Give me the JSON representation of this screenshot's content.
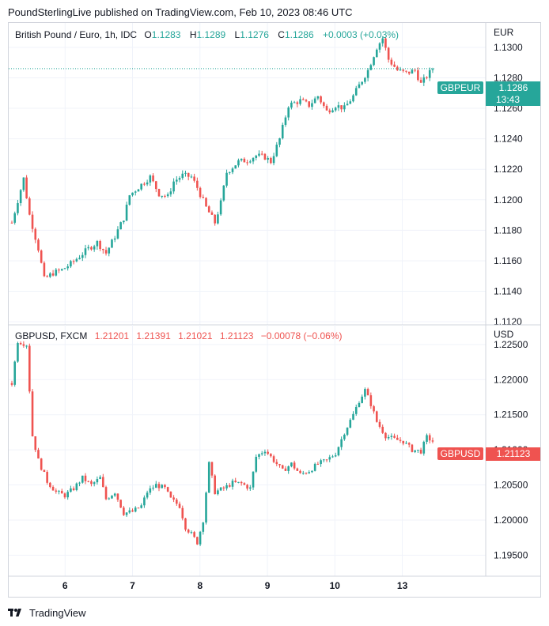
{
  "header": {
    "publisher_line": "PoundSterlingLive published on TradingView.com, Feb 10, 2023 08:46 UTC"
  },
  "footer": {
    "brand_label": "TradingView",
    "logo_icon": "tradingview-logo-icon"
  },
  "colors": {
    "up": "#26a69a",
    "down": "#ef5350",
    "grid": "#f0f3fa",
    "axis_text": "#131722",
    "last_line": "#26a69a"
  },
  "chart_data": [
    {
      "type": "candlestick",
      "symbol": "British Pound / Euro, 1h, IDC",
      "ohlc_labels": {
        "o_key": "O",
        "o_val": "1.1283",
        "h_key": "H",
        "h_val": "1.1289",
        "l_key": "L",
        "l_val": "1.1276",
        "c_key": "C",
        "c_val": "1.1286",
        "change": "+0.0003 (+0.03%)"
      },
      "currency": "EUR",
      "ylim": [
        1.1118,
        1.1316
      ],
      "y_ticks": [
        "1.1120",
        "1.1140",
        "1.1160",
        "1.1180",
        "1.1200",
        "1.1220",
        "1.1240",
        "1.1260",
        "1.1280",
        "1.1300"
      ],
      "last_price_label": {
        "name": "GBPEUR",
        "price": "1.1286",
        "countdown": "13:43",
        "color": "#26a69a"
      },
      "last_price": 1.1286,
      "y_close_path": [
        [
          0,
          1.1185
        ],
        [
          4,
          1.1214
        ],
        [
          6,
          1.119
        ],
        [
          9,
          1.1168
        ],
        [
          11,
          1.1148
        ],
        [
          14,
          1.1152
        ],
        [
          17,
          1.1154
        ],
        [
          20,
          1.1158
        ],
        [
          23,
          1.1163
        ],
        [
          26,
          1.1168
        ],
        [
          29,
          1.1172
        ],
        [
          32,
          1.1165
        ],
        [
          35,
          1.1176
        ],
        [
          38,
          1.1188
        ],
        [
          40,
          1.1203
        ],
        [
          44,
          1.121
        ],
        [
          47,
          1.1215
        ],
        [
          50,
          1.1204
        ],
        [
          53,
          1.1202
        ],
        [
          55,
          1.1212
        ],
        [
          58,
          1.1216
        ],
        [
          61,
          1.1215
        ],
        [
          63,
          1.1208
        ],
        [
          66,
          1.1195
        ],
        [
          69,
          1.1185
        ],
        [
          71,
          1.1198
        ],
        [
          73,
          1.1218
        ],
        [
          77,
          1.1225
        ],
        [
          80,
          1.1226
        ],
        [
          83,
          1.1229
        ],
        [
          86,
          1.1228
        ],
        [
          88,
          1.1225
        ],
        [
          91,
          1.124
        ],
        [
          94,
          1.1262
        ],
        [
          98,
          1.1265
        ],
        [
          101,
          1.1262
        ],
        [
          104,
          1.1268
        ],
        [
          107,
          1.1258
        ],
        [
          110,
          1.1262
        ],
        [
          113,
          1.126
        ],
        [
          116,
          1.1268
        ],
        [
          118,
          1.1275
        ],
        [
          121,
          1.1285
        ],
        [
          124,
          1.13
        ],
        [
          126,
          1.1306
        ],
        [
          128,
          1.1292
        ],
        [
          131,
          1.1285
        ],
        [
          134,
          1.1283
        ],
        [
          137,
          1.1285
        ],
        [
          139,
          1.1276
        ],
        [
          141,
          1.1281
        ],
        [
          143,
          1.1286
        ]
      ]
    },
    {
      "type": "candlestick",
      "symbol": "GBPUSD, FXCM",
      "ohlc_labels": {
        "o_val": "1.21201",
        "h_val": "1.21391",
        "l_val": "1.21021",
        "c_val": "1.21123",
        "change": "−0.00078 (−0.06%)"
      },
      "currency": "USD",
      "ylim": [
        1.192,
        1.2278
      ],
      "y_ticks": [
        "1.19500",
        "1.20000",
        "1.20500",
        "1.21000",
        "1.21500",
        "1.22000",
        "1.22500"
      ],
      "last_price_label": {
        "name": "GBPUSD",
        "price": "1.21123",
        "color": "#ef5350"
      },
      "last_price": 1.21123,
      "y_close_path": [
        [
          0,
          1.2195
        ],
        [
          2,
          1.2255
        ],
        [
          5,
          1.225
        ],
        [
          7,
          1.212
        ],
        [
          9,
          1.2085
        ],
        [
          12,
          1.2055
        ],
        [
          15,
          1.204
        ],
        [
          18,
          1.2035
        ],
        [
          21,
          1.2045
        ],
        [
          24,
          1.206
        ],
        [
          27,
          1.205
        ],
        [
          30,
          1.206
        ],
        [
          32,
          1.203
        ],
        [
          35,
          1.204
        ],
        [
          38,
          1.201
        ],
        [
          41,
          1.2012
        ],
        [
          44,
          1.202
        ],
        [
          46,
          1.204
        ],
        [
          49,
          1.205
        ],
        [
          52,
          1.2045
        ],
        [
          54,
          1.203
        ],
        [
          57,
          1.202
        ],
        [
          59,
          1.199
        ],
        [
          61,
          1.198
        ],
        [
          63,
          1.1968
        ],
        [
          65,
          1.2
        ],
        [
          67,
          1.208
        ],
        [
          69,
          1.204
        ],
        [
          72,
          1.2045
        ],
        [
          75,
          1.2053
        ],
        [
          78,
          1.2052
        ],
        [
          81,
          1.2045
        ],
        [
          83,
          1.209
        ],
        [
          86,
          1.21
        ],
        [
          89,
          1.2085
        ],
        [
          92,
          1.207
        ],
        [
          95,
          1.208
        ],
        [
          98,
          1.2065
        ],
        [
          101,
          1.207
        ],
        [
          104,
          1.208
        ],
        [
          107,
          1.2085
        ],
        [
          110,
          1.2095
        ],
        [
          113,
          1.2125
        ],
        [
          116,
          1.215
        ],
        [
          118,
          1.217
        ],
        [
          120,
          1.2185
        ],
        [
          122,
          1.2165
        ],
        [
          124,
          1.214
        ],
        [
          127,
          1.212
        ],
        [
          130,
          1.2115
        ],
        [
          133,
          1.2112
        ],
        [
          136,
          1.21
        ],
        [
          139,
          1.2098
        ],
        [
          141,
          1.2118
        ],
        [
          143,
          1.21123
        ]
      ]
    }
  ],
  "x_axis": {
    "labels": [
      {
        "text": "6",
        "day": 1.0
      },
      {
        "text": "7",
        "day": 2.0
      },
      {
        "text": "8",
        "day": 3.0
      },
      {
        "text": "9",
        "day": 4.0
      },
      {
        "text": "10",
        "day": 5.0
      },
      {
        "text": "13",
        "day": 6.0
      }
    ]
  }
}
